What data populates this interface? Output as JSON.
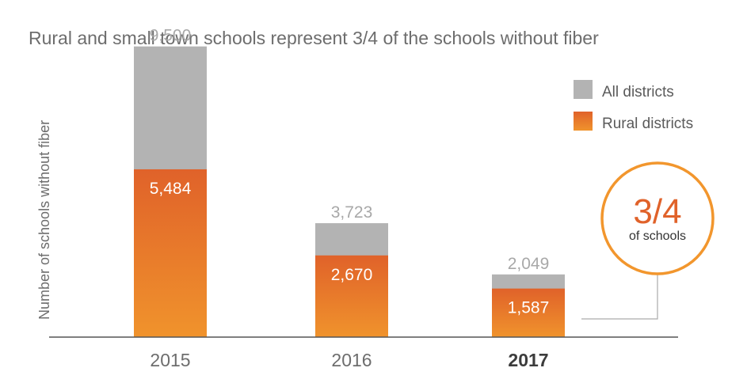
{
  "colors": {
    "all": "#b3b3b3",
    "rural_top": "#e0622a",
    "rural_bottom": "#f0932c",
    "axis": "#555555",
    "callout_ring": "#f2962d",
    "connector": "#aaaaaa"
  },
  "callout": {
    "value": "3/4",
    "caption": "of schools"
  },
  "chart_data": {
    "type": "bar",
    "title": "Rural and small town schools represent 3/4 of the schools without fiber",
    "ylabel": "Number of schools without fiber",
    "xlabel": "",
    "categories": [
      "2015",
      "2016",
      "2017"
    ],
    "highlight_category": "2017",
    "ylim": [
      0,
      10500
    ],
    "grid": false,
    "legend_position": "top-right",
    "series": [
      {
        "name": "All districts",
        "values": [
          9500,
          3723,
          2049
        ],
        "labels": [
          "9,500",
          "3,723",
          "2,049"
        ]
      },
      {
        "name": "Rural districts",
        "values": [
          5484,
          2670,
          1587
        ],
        "labels": [
          "5,484",
          "2,670",
          "1,587"
        ]
      }
    ]
  }
}
